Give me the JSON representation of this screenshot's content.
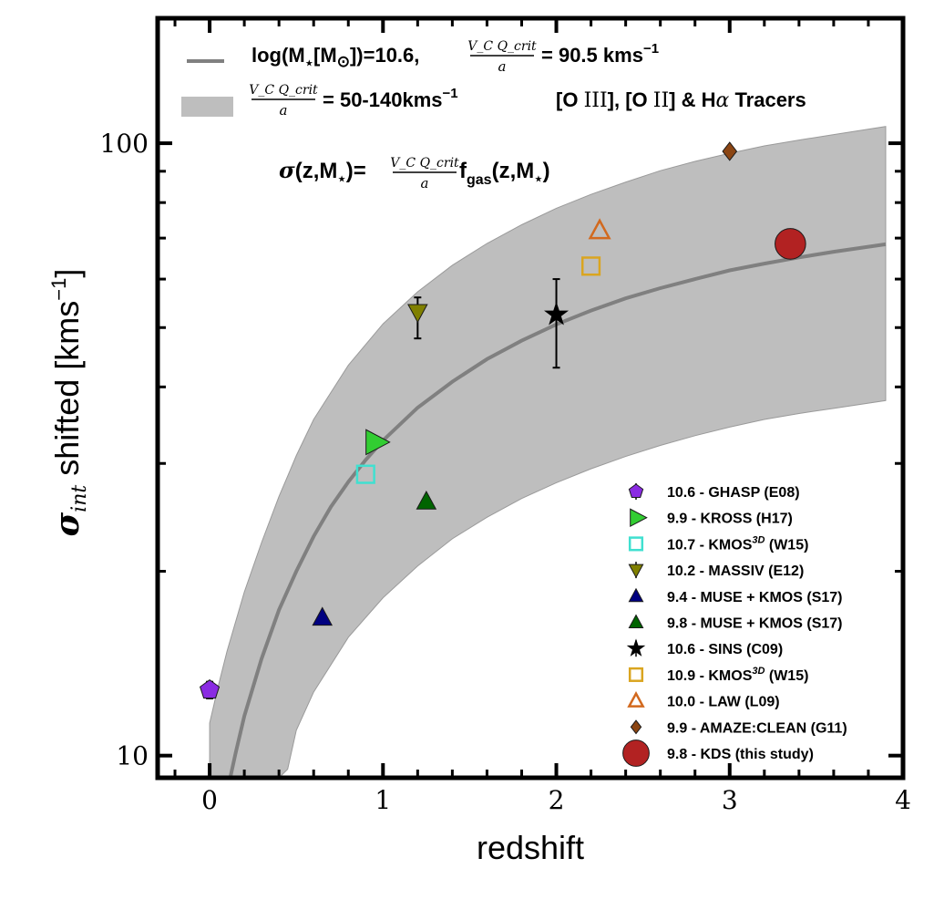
{
  "chart_data": {
    "type": "scatter",
    "xlabel": "redshift",
    "ylabel": "σ_int shifted [kms⁻¹]",
    "ylabel_parts": {
      "sigma": "σ",
      "sub": "int",
      "main": " shifted [kms",
      "sup": "−1",
      "end": "]"
    },
    "xlim": [
      -0.3,
      4.0
    ],
    "ylim": [
      9.2,
      160
    ],
    "yscale": "log",
    "x_ticks": [
      0,
      1,
      2,
      3,
      4
    ],
    "x_tick_labels": [
      "0",
      "1",
      "2",
      "3",
      "4"
    ],
    "y_ticks": [
      10,
      100
    ],
    "y_tick_labels": [
      "10",
      "100"
    ],
    "model_line": {
      "label": "log(M⋆[M⊙])=10.6, VcQcrit/a = 90.5 kms⁻¹",
      "label_parts": {
        "a": "log(M",
        "a_sub": "⋆",
        "b": "[M",
        "b_sub": "⊙",
        "c": "])=10.6,",
        "frac_num": "V_C Q_crit",
        "frac_den": "a",
        "d": "= 90.5 kms",
        "d_sup": "−1"
      },
      "color": "#808080",
      "x": [
        0.1,
        0.15,
        0.2,
        0.3,
        0.4,
        0.5,
        0.6,
        0.7,
        0.8,
        0.9,
        1.0,
        1.2,
        1.4,
        1.6,
        1.8,
        2.0,
        2.2,
        2.4,
        2.6,
        2.8,
        3.0,
        3.2,
        3.4,
        3.6,
        3.9
      ],
      "y": [
        8.7,
        10.1,
        11.6,
        14.4,
        17.3,
        20.0,
        22.8,
        25.5,
        28.0,
        30.4,
        32.7,
        37.0,
        40.8,
        44.4,
        47.6,
        50.6,
        53.3,
        55.8,
        58.0,
        60.0,
        62.0,
        63.6,
        65.1,
        66.5,
        68.4
      ]
    },
    "band": {
      "label": "VcQcrit/a = 50-140kms⁻¹",
      "label_parts": {
        "frac_num": "V_C Q_crit",
        "frac_den": "a",
        "d": "= 50-140kms",
        "d_sup": "−1"
      },
      "color": "#bebebe",
      "x": [
        0.0,
        0.05,
        0.1,
        0.2,
        0.3,
        0.4,
        0.45,
        0.5,
        0.6,
        0.8,
        1.0,
        1.2,
        1.4,
        1.6,
        1.8,
        2.0,
        2.2,
        2.4,
        2.6,
        2.8,
        3.0,
        3.2,
        3.4,
        3.6,
        3.9
      ],
      "upper": [
        11.3,
        13.0,
        14.8,
        18.5,
        22.3,
        26.5,
        28.6,
        30.9,
        35.4,
        43.4,
        50.7,
        57.2,
        63.2,
        68.6,
        73.6,
        78.3,
        82.5,
        86.4,
        90.2,
        93.4,
        96.3,
        99.0,
        101.2,
        103.3,
        106.5
      ],
      "lower": [
        null,
        null,
        null,
        null,
        null,
        9.2,
        9.5,
        11.0,
        12.7,
        15.6,
        18.1,
        20.4,
        22.6,
        24.5,
        26.3,
        27.9,
        29.4,
        30.8,
        32.1,
        33.3,
        34.4,
        35.4,
        36.2,
        36.9,
        38.0
      ]
    },
    "tracers_note": "[O III], [O II] & Hα Tracers",
    "tracers_note_parts": {
      "a": "[O ",
      "a_roman": "III",
      "b": "], [O ",
      "b_roman": "II",
      "c": "] & H",
      "alpha": "α",
      "d": " Tracers"
    },
    "formula": "σ(z,M⋆)=VcQcrit/a f_gas(z,M⋆)",
    "formula_parts": {
      "a": "σ",
      "b": "(z,M",
      "b_sub": "⋆",
      "c": ")=",
      "frac_num": "V_C Q_crit",
      "frac_den": "a",
      "d": "f",
      "d_sub": "gas",
      "e": "(z,M",
      "e_sub": "⋆",
      "f": ")"
    },
    "series": [
      {
        "name": "10.6 - GHASP (E08)",
        "marker": "pentagon",
        "color": "#8a2be2",
        "filled": true,
        "x": 0.0,
        "y": 12.8,
        "err": [
          12.4,
          13.2
        ]
      },
      {
        "name": "9.9 - KROSS (H17)",
        "marker": "triangle-right",
        "color": "#32cd32",
        "filled": true,
        "x": 0.95,
        "y": 32.5
      },
      {
        "name": "10.7 - KMOS3D (W15)",
        "name_parts": {
          "a": "10.7 - KMOS",
          "sup": "3D",
          "b": " (W15)"
        },
        "marker": "square",
        "color": "#40e0d0",
        "filled": false,
        "x": 0.9,
        "y": 28.8
      },
      {
        "name": "10.2 - MASSIV (E12)",
        "marker": "triangle-down",
        "color": "#808000",
        "filled": true,
        "x": 1.2,
        "y": 53.0,
        "err": [
          48.0,
          56.0
        ]
      },
      {
        "name": "9.4 - MUSE + KMOS (S17)",
        "marker": "triangle-up",
        "color": "#000080",
        "filled": true,
        "x": 0.65,
        "y": 16.8
      },
      {
        "name": "9.8 - MUSE + KMOS (S17)",
        "marker": "triangle-up",
        "color": "#006400",
        "filled": true,
        "x": 1.25,
        "y": 26.0
      },
      {
        "name": "10.6 - SINS (C09)",
        "marker": "star",
        "color": "#000000",
        "filled": true,
        "x": 2.0,
        "y": 52.5,
        "err": [
          43.0,
          60.0
        ]
      },
      {
        "name": "10.9 - KMOS3D (W15)",
        "name_parts": {
          "a": "10.9 - KMOS",
          "sup": "3D",
          "b": " (W15)"
        },
        "marker": "square",
        "color": "#daa520",
        "filled": false,
        "x": 2.2,
        "y": 63.0
      },
      {
        "name": "10.0 - LAW (L09)",
        "marker": "triangle-up",
        "color": "#d2691e",
        "filled": false,
        "x": 2.25,
        "y": 72.0
      },
      {
        "name": "9.9 - AMAZE:CLEAN (G11)",
        "marker": "diamond",
        "color": "#8b4513",
        "filled": true,
        "x": 3.0,
        "y": 97.0
      },
      {
        "name": "9.8 - KDS (this study)",
        "marker": "circle",
        "color": "#b22222",
        "filled": true,
        "x": 3.35,
        "y": 68.5
      }
    ]
  }
}
